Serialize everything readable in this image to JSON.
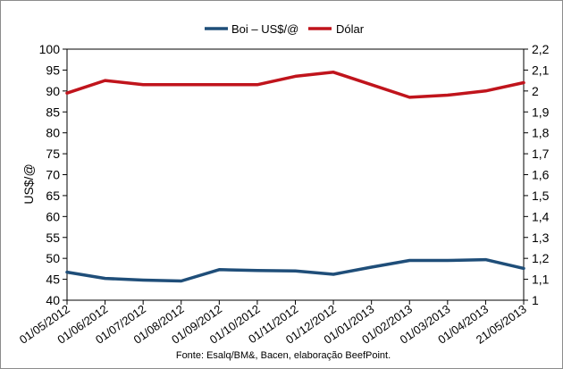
{
  "chart_data": {
    "type": "line",
    "categories": [
      "01/05/2012",
      "01/06/2012",
      "01/07/2012",
      "01/08/2012",
      "01/09/2012",
      "01/10/2012",
      "01/11/2012",
      "01/12/2012",
      "01/01/2013",
      "01/02/2013",
      "01/03/2013",
      "01/04/2013",
      "21/05/2013"
    ],
    "series": [
      {
        "name": "Boi – US$/@",
        "axis": "left",
        "color": "#1f4e79",
        "values": [
          46.7,
          45.2,
          44.8,
          44.6,
          47.3,
          47.1,
          47.0,
          46.2,
          47.9,
          49.5,
          49.5,
          49.7,
          47.6
        ]
      },
      {
        "name": "Dólar",
        "axis": "right",
        "color": "#c0141c",
        "values": [
          1.99,
          2.05,
          2.03,
          2.03,
          2.03,
          2.03,
          2.07,
          2.09,
          2.03,
          1.97,
          1.98,
          2.0,
          2.04
        ]
      }
    ],
    "ylabel": "US$/@",
    "ylim": [
      40,
      100
    ],
    "yticks": [
      "40",
      "45",
      "50",
      "55",
      "60",
      "65",
      "70",
      "75",
      "80",
      "85",
      "90",
      "95",
      "100"
    ],
    "y2lim": [
      1,
      2.2
    ],
    "y2ticks": [
      "1",
      "1,1",
      "1,2",
      "1,3",
      "1,4",
      "1,5",
      "1,6",
      "1,7",
      "1,8",
      "1,9",
      "2",
      "2,1",
      "2,2"
    ],
    "grid": false,
    "legend": "top-center",
    "source": "Fonte: Esalq/BM&, Bacen, elaboração BeefPoint."
  }
}
